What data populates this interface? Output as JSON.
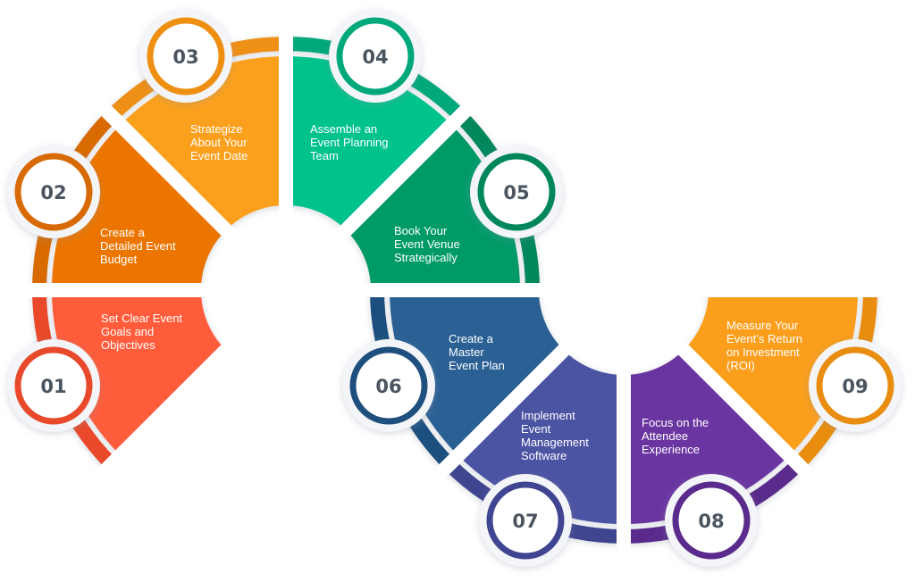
{
  "steps": [
    {
      "number": "01",
      "label": "Set Clear Event\nGoals and\nObjectives",
      "color": "#FF5B3A",
      "ring": "#E9492B"
    },
    {
      "number": "02",
      "label": "Create a\nDetailed Event\nBudget",
      "color": "#EC7505",
      "ring": "#D86A05"
    },
    {
      "number": "03",
      "label": "Strategize\nAbout Your\nEvent Date",
      "color": "#FBA01F",
      "ring": "#EE8F12"
    },
    {
      "number": "04",
      "label": "Assemble an\nEvent Planning\nTeam",
      "color": "#00C28B",
      "ring": "#00A87A"
    },
    {
      "number": "05",
      "label": "Book Your\nEvent Venue\nStrategically",
      "color": "#019A68",
      "ring": "#01875B"
    },
    {
      "number": "06",
      "label": "Create a\nMaster\nEvent Plan",
      "color": "#2A6194",
      "ring": "#1F4F7E"
    },
    {
      "number": "07",
      "label": "Implement\nEvent\nManagement\nSoftware",
      "color": "#4C52A3",
      "ring": "#3F4590"
    },
    {
      "number": "08",
      "label": "Focus on the\nAttendee\nExperience",
      "color": "#6A36A0",
      "ring": "#5A2B8C"
    },
    {
      "number": "09",
      "label": "Measure Your\nEvent’s Return\non Investment\n(ROI)",
      "color": "#FA9E1E",
      "ring": "#E88D10"
    }
  ]
}
